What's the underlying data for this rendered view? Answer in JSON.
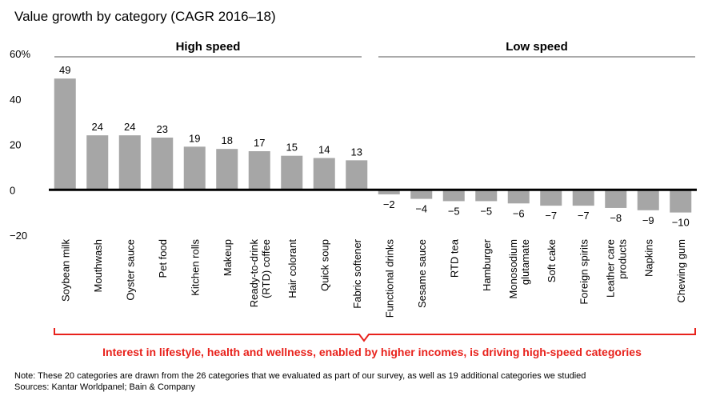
{
  "chart_data": {
    "type": "bar",
    "title": "Value growth by category (CAGR 2016–18)",
    "categories": [
      "Soybean milk",
      "Mouthwash",
      "Oyster sauce",
      "Pet food",
      "Kitchen rolls",
      "Makeup",
      "Ready-to-drink\n(RTD) coffee",
      "Hair colorant",
      "Quick soup",
      "Fabric softener",
      "Functional drinks",
      "Sesame sauce",
      "RTD tea",
      "Hamburger",
      "Monosodium\nglutamate",
      "Soft cake",
      "Foreign spirits",
      "Leather care\nproducts",
      "Napkins",
      "Chewing gum"
    ],
    "values": [
      49,
      24,
      24,
      23,
      19,
      18,
      17,
      15,
      14,
      13,
      -2,
      -4,
      -5,
      -5,
      -6,
      -7,
      -7,
      -8,
      -9,
      -10
    ],
    "value_labels": [
      "49",
      "24",
      "24",
      "23",
      "19",
      "18",
      "17",
      "15",
      "14",
      "13",
      "−2",
      "−4",
      "−5",
      "−5",
      "−6",
      "−7",
      "−7",
      "−8",
      "−9",
      "−10"
    ],
    "color": "#a6a6a6",
    "ylim": [
      -20,
      60
    ],
    "yticks": [
      {
        "value": -20,
        "label": "−20"
      },
      0,
      20,
      40,
      {
        "value": 60,
        "label": "60%"
      }
    ],
    "groups": [
      "High speed",
      "Low speed"
    ],
    "annotation": "Interest in lifestyle, health and wellness, enabled by higher incomes, is driving high-speed categories",
    "note": "Note: These 20 categories are drawn from the 26 categories that we evaluated as part of our survey, as well as 19 additional categories we studied",
    "sources": "Sources: Kantar Worldpanel; Bain & Company"
  }
}
